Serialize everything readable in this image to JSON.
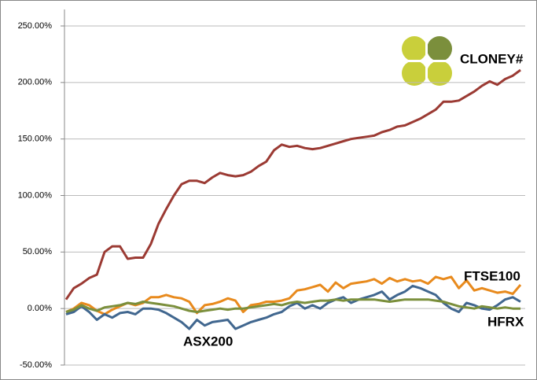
{
  "chart_data": {
    "type": "line",
    "ylim": [
      -50,
      250
    ],
    "yticks": [
      {
        "value": -50,
        "label": "-50.00%"
      },
      {
        "value": 0,
        "label": "0.00%"
      },
      {
        "value": 50,
        "label": "50.00%"
      },
      {
        "value": 100,
        "label": "100.00%"
      },
      {
        "value": 150,
        "label": "150.00%"
      },
      {
        "value": 200,
        "label": "200.00%"
      },
      {
        "value": 250,
        "label": "250.00%"
      }
    ],
    "grid": true,
    "series": [
      {
        "name": "CLONEY#",
        "color": "#9b3a33",
        "values": [
          8,
          18,
          22,
          27,
          30,
          50,
          55,
          55,
          44,
          45,
          45,
          57,
          75,
          88,
          100,
          110,
          113,
          113,
          111,
          116,
          120,
          118,
          117,
          118,
          121,
          126,
          130,
          140,
          145,
          143,
          144,
          142,
          141,
          142,
          144,
          146,
          148,
          150,
          151,
          152,
          153,
          156,
          158,
          161,
          162,
          165,
          168,
          172,
          176,
          183,
          183,
          184,
          188,
          192,
          197,
          201,
          198,
          203,
          206,
          211
        ]
      },
      {
        "name": "FTSE100",
        "color": "#e88a1d",
        "values": [
          -3,
          0,
          5,
          3,
          -2,
          -5,
          -1,
          2,
          5,
          3,
          5,
          10,
          10,
          12,
          10,
          9,
          6,
          -4,
          3,
          4,
          6,
          9,
          7,
          -3,
          3,
          4,
          6,
          6,
          7,
          9,
          16,
          17,
          19,
          21,
          15,
          23,
          18,
          22,
          23,
          24,
          26,
          22,
          27,
          24,
          26,
          24,
          25,
          22,
          28,
          26,
          28,
          18,
          25,
          16,
          18,
          16,
          14,
          15,
          13,
          21
        ]
      },
      {
        "name": "ASX200",
        "color": "#41678f",
        "values": [
          -5,
          -3,
          2,
          -3,
          -10,
          -5,
          -8,
          -4,
          -3,
          -5,
          0,
          0,
          -1,
          -4,
          -8,
          -12,
          -18,
          -10,
          -15,
          -12,
          -11,
          -10,
          -18,
          -15,
          -12,
          -10,
          -8,
          -5,
          -3,
          2,
          5,
          0,
          3,
          0,
          5,
          8,
          10,
          5,
          8,
          10,
          12,
          15,
          8,
          12,
          15,
          20,
          18,
          15,
          12,
          5,
          0,
          -3,
          5,
          3,
          0,
          -1,
          3,
          8,
          10,
          6
        ]
      },
      {
        "name": "HFRX",
        "color": "#7b8f3c",
        "values": [
          -3,
          -1,
          3,
          0,
          -2,
          1,
          2,
          3,
          5,
          4,
          6,
          5,
          4,
          3,
          2,
          0,
          -2,
          -3,
          -2,
          -1,
          0,
          -1,
          0,
          0,
          1,
          2,
          3,
          4,
          3,
          5,
          6,
          5,
          6,
          7,
          7,
          8,
          7,
          8,
          8,
          8,
          8,
          7,
          6,
          7,
          8,
          8,
          8,
          8,
          7,
          6,
          4,
          2,
          1,
          0,
          2,
          1,
          0,
          1,
          0,
          0
        ]
      }
    ]
  }
}
